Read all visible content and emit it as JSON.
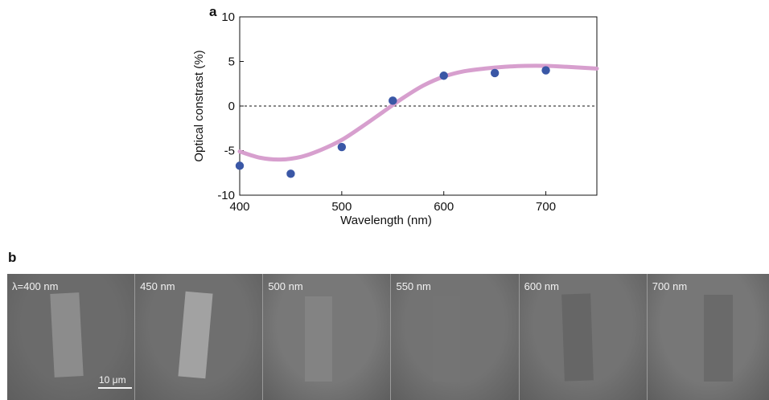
{
  "panels": {
    "a_label": "a",
    "b_label": "b"
  },
  "chart_data": {
    "type": "scatter",
    "ylabel": "Optical constrast (%)",
    "xlabel": "Wavelength (nm)",
    "xlim": [
      400,
      750
    ],
    "ylim": [
      -10,
      10
    ],
    "x_ticks": [
      400,
      500,
      600,
      700
    ],
    "y_ticks": [
      10,
      5,
      0,
      -5,
      -10
    ],
    "x_tick_labels": [
      "400",
      "500",
      "600",
      "700"
    ],
    "y_tick_labels": [
      "10",
      "5",
      "0",
      "-5",
      "-10"
    ],
    "zero_line": {
      "y": 0,
      "style": "dashed"
    },
    "points": {
      "x": [
        400,
        450,
        500,
        550,
        600,
        650,
        700
      ],
      "y": [
        -6.7,
        -7.6,
        -4.6,
        0.6,
        3.4,
        3.7,
        4.0
      ],
      "color": "#3a57a6"
    },
    "fit_curve": {
      "x": [
        400,
        420,
        440,
        460,
        480,
        500,
        520,
        540,
        560,
        580,
        600,
        620,
        640,
        660,
        680,
        700,
        720,
        750
      ],
      "y": [
        -5.1,
        -5.8,
        -6.0,
        -5.7,
        -4.9,
        -3.8,
        -2.3,
        -0.7,
        0.9,
        2.3,
        3.3,
        3.9,
        4.2,
        4.4,
        4.5,
        4.5,
        4.4,
        4.2
      ],
      "color": "#d79fce"
    },
    "grid": false
  },
  "micrographs": {
    "scalebar_label": "10 μm",
    "items": [
      {
        "label": "λ=400 nm",
        "bg": "#6b6b6b",
        "flake_color": "#8c8c8c"
      },
      {
        "label": "450 nm",
        "bg": "#6f6f6f",
        "flake_color": "#a2a2a2"
      },
      {
        "label": "500 nm",
        "bg": "#787878",
        "flake_color": "#838383"
      },
      {
        "label": "550 nm",
        "bg": "#737373",
        "flake_color": "#747474"
      },
      {
        "label": "600 nm",
        "bg": "#737373",
        "flake_color": "#666666"
      },
      {
        "label": "700 nm",
        "bg": "#777777",
        "flake_color": "#6a6a6a"
      }
    ]
  }
}
